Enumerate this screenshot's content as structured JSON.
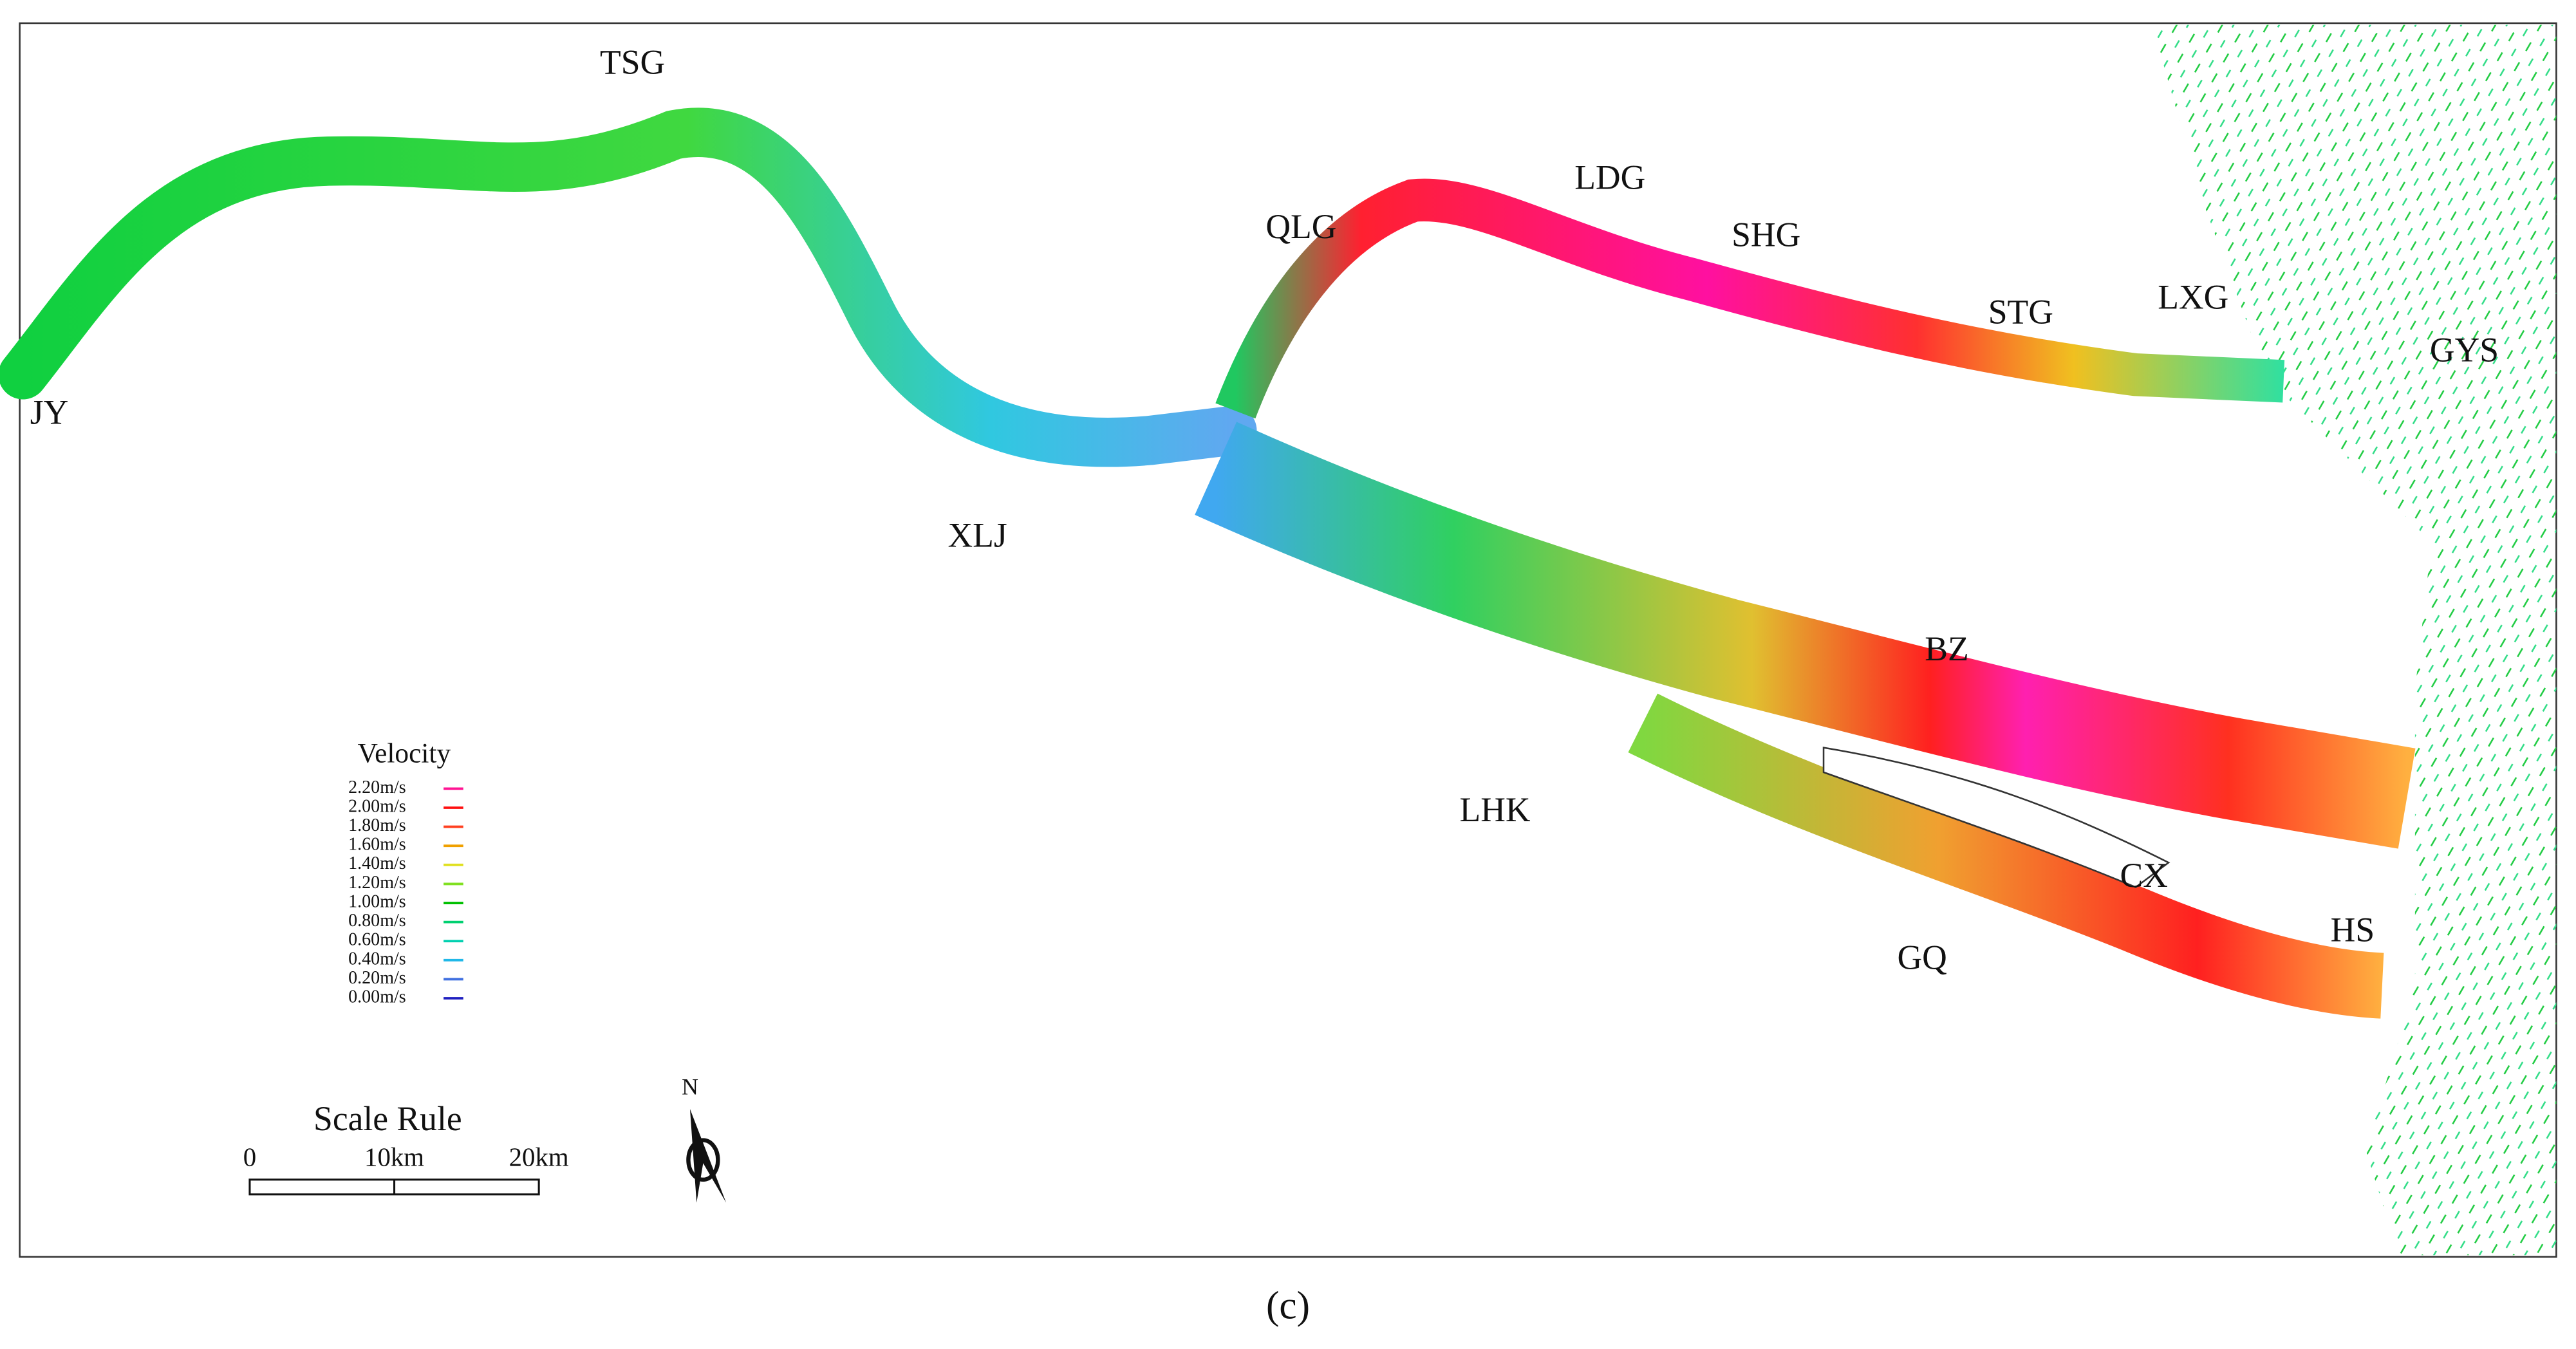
{
  "map": {
    "places": [
      "TSG",
      "QLG",
      "LDG",
      "SHG",
      "STG",
      "LXG",
      "GYS",
      "JY",
      "XLJ",
      "BZ",
      "LHK",
      "CX",
      "GQ",
      "HS"
    ],
    "legend": {
      "title": "Velocity",
      "entries": [
        {
          "label": "2.20m/s",
          "color": "#ff1493"
        },
        {
          "label": "2.00m/s",
          "color": "#ff1010"
        },
        {
          "label": "1.80m/s",
          "color": "#ff4020"
        },
        {
          "label": "1.60m/s",
          "color": "#f0a000"
        },
        {
          "label": "1.40m/s",
          "color": "#e0e020"
        },
        {
          "label": "1.20m/s",
          "color": "#80e020"
        },
        {
          "label": "1.00m/s",
          "color": "#00c000"
        },
        {
          "label": "0.80m/s",
          "color": "#00d070"
        },
        {
          "label": "0.60m/s",
          "color": "#00d0b0"
        },
        {
          "label": "0.40m/s",
          "color": "#20b8e8"
        },
        {
          "label": "0.20m/s",
          "color": "#4070e0"
        },
        {
          "label": "0.00m/s",
          "color": "#2020c0"
        }
      ]
    },
    "scale_rule": {
      "title": "Scale Rule",
      "ticks": [
        "0",
        "10km",
        "20km"
      ]
    },
    "north": "N"
  },
  "caption": "(c)"
}
